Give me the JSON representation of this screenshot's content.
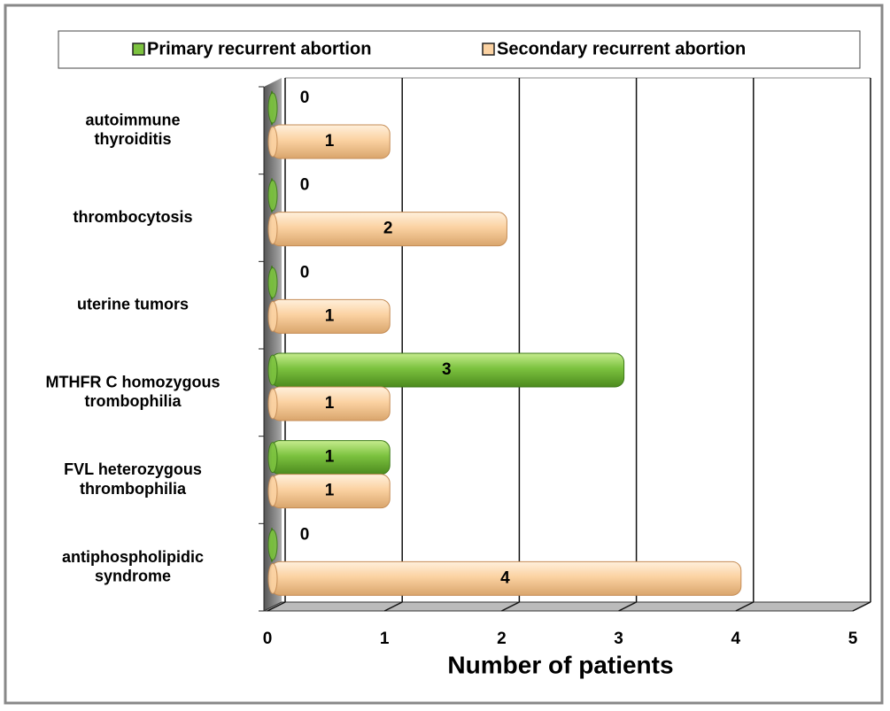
{
  "chart_data": {
    "type": "bar",
    "orientation": "horizontal",
    "categories": [
      "autoimmune\nthyroiditis",
      "thrombocytosis",
      "uterine tumors",
      "MTHFR C homozygous\ntrombophilia",
      "FVL heterozygous\nthrombophilia",
      "antiphospholipidic\nsyndrome"
    ],
    "series": [
      {
        "name": "Primary recurrent abortion",
        "color": "#7cc23f",
        "values": [
          0,
          0,
          0,
          3,
          1,
          0
        ]
      },
      {
        "name": "Secondary recurrent abortion",
        "color": "#fbd2a2",
        "values": [
          1,
          2,
          1,
          1,
          1,
          4
        ]
      }
    ],
    "xlabel": "Number of patients",
    "xlim": [
      0,
      5
    ],
    "xticks": [
      0,
      1,
      2,
      3,
      4,
      5
    ],
    "grid": true,
    "legend": "top"
  }
}
